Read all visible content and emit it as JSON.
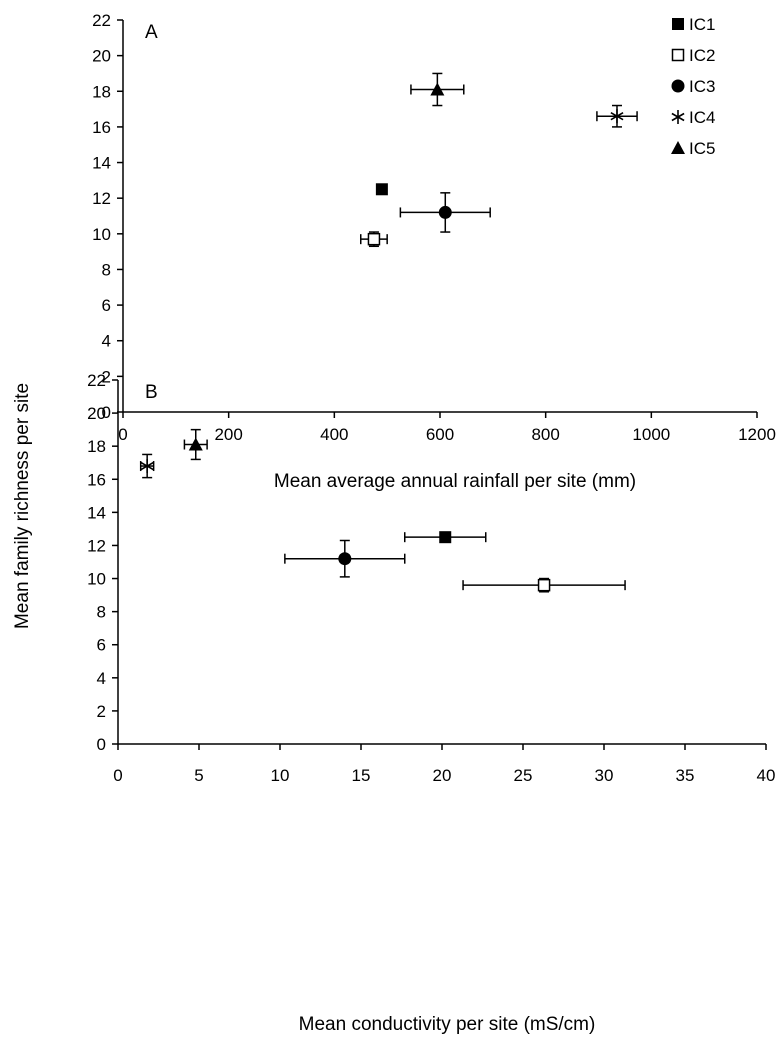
{
  "figure": {
    "shared_ylabel": "Mean family richness per site"
  },
  "chart_data": [
    {
      "type": "scatter",
      "panel": "A",
      "title": "",
      "xlabel": "Mean average annual rainfall per site (mm)",
      "ylabel": "Mean family richness per site",
      "xlim": [
        0,
        1200
      ],
      "ylim": [
        0,
        22
      ],
      "xticks": [
        0,
        200,
        400,
        600,
        800,
        1000,
        1200
      ],
      "yticks": [
        0,
        2,
        4,
        6,
        8,
        10,
        12,
        14,
        16,
        18,
        20,
        22
      ],
      "grid": false,
      "legend_position": "top-right",
      "series": [
        {
          "name": "IC1",
          "marker": "filled-square",
          "x": 490,
          "y": 12.5,
          "x_err": 0,
          "y_err": 0.1
        },
        {
          "name": "IC2",
          "marker": "open-square",
          "x": 475,
          "y": 9.7,
          "x_err": 25,
          "y_err": 0.4
        },
        {
          "name": "IC3",
          "marker": "filled-circle",
          "x": 610,
          "y": 11.2,
          "x_err": 85,
          "y_err": 1.1
        },
        {
          "name": "IC4",
          "marker": "asterisk",
          "x": 935,
          "y": 16.6,
          "x_err": 38,
          "y_err": 0.6
        },
        {
          "name": "IC5",
          "marker": "filled-triangle",
          "x": 595,
          "y": 18.1,
          "x_err": 50,
          "y_err": 0.9
        }
      ]
    },
    {
      "type": "scatter",
      "panel": "B",
      "title": "",
      "xlabel": "Mean conductivity per site (mS/cm)",
      "ylabel": "Mean family richness per site",
      "xlim": [
        0,
        40
      ],
      "ylim": [
        0,
        22
      ],
      "xticks": [
        0,
        5,
        10,
        15,
        20,
        25,
        30,
        35,
        40
      ],
      "yticks": [
        0,
        2,
        4,
        6,
        8,
        10,
        12,
        14,
        16,
        18,
        20,
        22
      ],
      "grid": false,
      "legend_position": "none",
      "series": [
        {
          "name": "IC1",
          "marker": "filled-square",
          "x": 20.2,
          "y": 12.5,
          "x_err": 2.5,
          "y_err": 0.1
        },
        {
          "name": "IC2",
          "marker": "open-square",
          "x": 26.3,
          "y": 9.6,
          "x_err": 5.0,
          "y_err": 0.4
        },
        {
          "name": "IC3",
          "marker": "filled-circle",
          "x": 14.0,
          "y": 11.2,
          "x_err": 3.7,
          "y_err": 1.1
        },
        {
          "name": "IC4",
          "marker": "asterisk",
          "x": 1.8,
          "y": 16.8,
          "x_err": 0.4,
          "y_err": 0.7
        },
        {
          "name": "IC5",
          "marker": "filled-triangle",
          "x": 4.8,
          "y": 18.1,
          "x_err": 0.7,
          "y_err": 0.9
        }
      ]
    }
  ]
}
